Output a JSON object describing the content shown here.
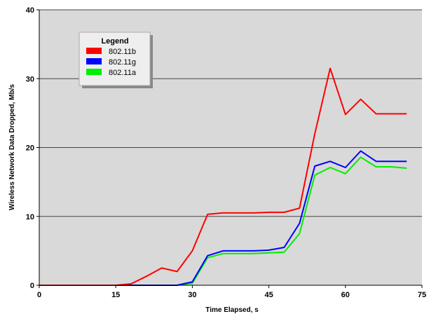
{
  "chart_data": {
    "type": "line",
    "title": "",
    "xlabel": "Time Elapsed, s",
    "ylabel": "Wireless Network Data Dropped, Mb/s",
    "xlim": [
      0,
      75
    ],
    "ylim": [
      0,
      40
    ],
    "x_ticks": [
      "0",
      "15",
      "30",
      "45",
      "60",
      "75"
    ],
    "y_ticks": [
      "0",
      "10",
      "20",
      "30",
      "40"
    ],
    "grid": "horizontal",
    "legend": {
      "title": "Legend",
      "placement": "top-left"
    },
    "x": [
      0,
      3,
      6,
      9,
      12,
      15,
      18,
      21,
      24,
      27,
      30,
      33,
      36,
      39,
      42,
      45,
      48,
      51,
      54,
      57,
      60,
      63,
      66,
      69,
      72
    ],
    "series": [
      {
        "name": "802.11b",
        "color": "#ff0000",
        "values": [
          0,
          0,
          0,
          0,
          0,
          0,
          0.2,
          1.3,
          2.5,
          2.0,
          5.0,
          10.3,
          10.5,
          10.5,
          10.5,
          10.6,
          10.6,
          11.2,
          22.0,
          31.5,
          24.8,
          27.0,
          24.9,
          24.9,
          24.9
        ]
      },
      {
        "name": "802.11g",
        "color": "#0000ff",
        "values": [
          0,
          0,
          0,
          0,
          0,
          0,
          0,
          0,
          0,
          0,
          0.5,
          4.3,
          5.0,
          5.0,
          5.0,
          5.1,
          5.5,
          9.0,
          17.3,
          18.0,
          17.1,
          19.5,
          18.0,
          18.0,
          18.0
        ]
      },
      {
        "name": "802.11a",
        "color": "#00ee00",
        "values": [
          0,
          0,
          0,
          0,
          0,
          0,
          0,
          0,
          0,
          0,
          0.3,
          4.0,
          4.6,
          4.6,
          4.6,
          4.7,
          4.8,
          7.5,
          16.0,
          17.1,
          16.2,
          18.6,
          17.2,
          17.2,
          17.0
        ]
      }
    ]
  }
}
